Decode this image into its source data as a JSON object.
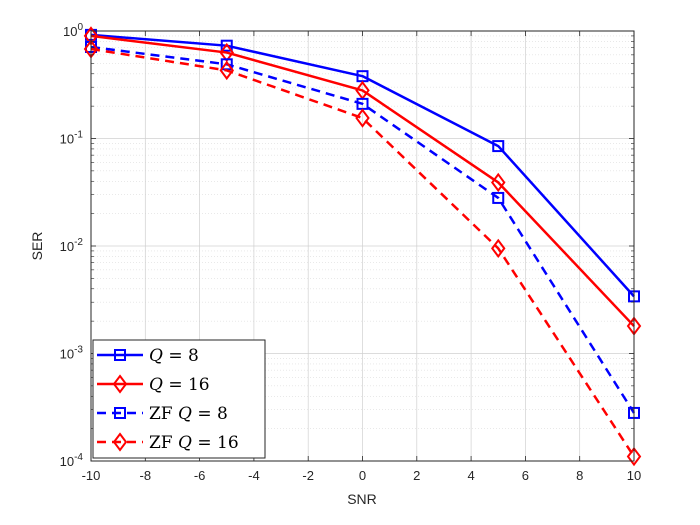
{
  "chart_data": {
    "type": "line",
    "xlabel": "SNR",
    "ylabel": "SER",
    "y_scale": "log",
    "xlim": [
      -10,
      10
    ],
    "ylim": [
      0.0001,
      1
    ],
    "grid": true,
    "minor_grid": true,
    "legend_position": "bottom-left",
    "x": [
      -10,
      -5,
      0,
      5,
      10
    ],
    "x_ticks": [
      -10,
      -8,
      -6,
      -4,
      -2,
      0,
      2,
      4,
      6,
      8,
      10
    ],
    "x_tick_labels": [
      "-10",
      "-8",
      "-6",
      "-4",
      "-2",
      "0",
      "2",
      "4",
      "6",
      "8",
      "10"
    ],
    "y_ticks": [
      0.0001,
      0.001,
      0.01,
      0.1,
      1
    ],
    "y_tick_labels": [
      {
        "base": "10",
        "exp": "-4"
      },
      {
        "base": "10",
        "exp": "-3"
      },
      {
        "base": "10",
        "exp": "-2"
      },
      {
        "base": "10",
        "exp": "-1"
      },
      {
        "base": "10",
        "exp": "0"
      }
    ],
    "series": [
      {
        "name": "Q = 8",
        "legend_prefix": "",
        "legend_var": "Q",
        "legend_rest": " = 8",
        "color": "#0000ff",
        "dash": "solid",
        "marker": "square",
        "values": [
          0.92,
          0.73,
          0.38,
          0.085,
          0.0034
        ]
      },
      {
        "name": "Q = 16",
        "legend_prefix": "",
        "legend_var": "Q",
        "legend_rest": " = 16",
        "color": "#ff0000",
        "dash": "solid",
        "marker": "diamond",
        "values": [
          0.9,
          0.63,
          0.28,
          0.039,
          0.0018
        ]
      },
      {
        "name": "ZF Q = 8",
        "legend_prefix": "ZF ",
        "legend_var": "Q",
        "legend_rest": " = 8",
        "color": "#0000ff",
        "dash": "dashed",
        "marker": "square",
        "values": [
          0.71,
          0.49,
          0.21,
          0.028,
          0.00028
        ]
      },
      {
        "name": "ZF Q = 16",
        "legend_prefix": "ZF ",
        "legend_var": "Q",
        "legend_rest": " = 16",
        "color": "#ff0000",
        "dash": "dashed",
        "marker": "diamond",
        "values": [
          0.68,
          0.43,
          0.155,
          0.0095,
          0.00011
        ]
      }
    ]
  }
}
